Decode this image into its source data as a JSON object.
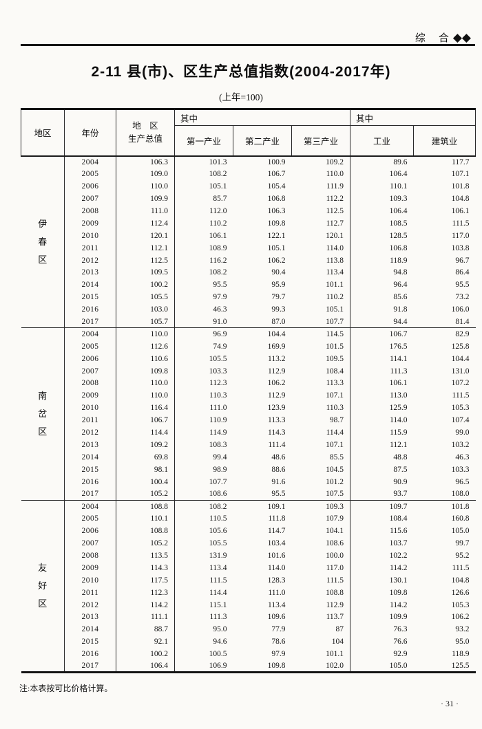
{
  "page": {
    "corner_label": "综　合",
    "corner_diamonds": "◆◆",
    "title": "2-11 县(市)、区生产总值指数(2004-2017年)",
    "subtitle": "(上年=100)",
    "footnote": "注:本表按可比价格计算。",
    "page_number": "· 31 ·"
  },
  "table": {
    "headers": {
      "region": "地区",
      "year": "年份",
      "gdp_line1": "地　区",
      "gdp_line2": "生产总值",
      "of_which_1": "其中",
      "primary": "第一产业",
      "secondary": "第二产业",
      "tertiary": "第三产业",
      "of_which_2": "其中",
      "industry": "工业",
      "construction": "建筑业"
    },
    "sections": [
      {
        "region": "伊春区",
        "region_chars": [
          "伊",
          "春",
          "区"
        ],
        "rows": [
          [
            "2004",
            "106.3",
            "101.3",
            "100.9",
            "109.2",
            "89.6",
            "117.7"
          ],
          [
            "2005",
            "109.0",
            "108.2",
            "106.7",
            "110.0",
            "106.4",
            "107.1"
          ],
          [
            "2006",
            "110.0",
            "105.1",
            "105.4",
            "111.9",
            "110.1",
            "101.8"
          ],
          [
            "2007",
            "109.9",
            "85.7",
            "106.8",
            "112.2",
            "109.3",
            "104.8"
          ],
          [
            "2008",
            "111.0",
            "112.0",
            "106.3",
            "112.5",
            "106.4",
            "106.1"
          ],
          [
            "2009",
            "112.4",
            "110.2",
            "109.8",
            "112.7",
            "108.5",
            "111.5"
          ],
          [
            "2010",
            "120.1",
            "106.1",
            "122.1",
            "120.1",
            "128.5",
            "117.0"
          ],
          [
            "2011",
            "112.1",
            "108.9",
            "105.1",
            "114.0",
            "106.8",
            "103.8"
          ],
          [
            "2012",
            "112.5",
            "116.2",
            "106.2",
            "113.8",
            "118.9",
            "96.7"
          ],
          [
            "2013",
            "109.5",
            "108.2",
            "90.4",
            "113.4",
            "94.8",
            "86.4"
          ],
          [
            "2014",
            "100.2",
            "95.5",
            "95.9",
            "101.1",
            "96.4",
            "95.5"
          ],
          [
            "2015",
            "105.5",
            "97.9",
            "79.7",
            "110.2",
            "85.6",
            "73.2"
          ],
          [
            "2016",
            "103.0",
            "46.3",
            "99.3",
            "105.1",
            "91.8",
            "106.0"
          ],
          [
            "2017",
            "105.7",
            "91.0",
            "87.0",
            "107.7",
            "94.4",
            "81.4"
          ]
        ]
      },
      {
        "region": "南岔区",
        "region_chars": [
          "南",
          "岔",
          "区"
        ],
        "rows": [
          [
            "2004",
            "110.0",
            "96.9",
            "104.4",
            "114.5",
            "106.7",
            "82.9"
          ],
          [
            "2005",
            "112.6",
            "74.9",
            "169.9",
            "101.5",
            "176.5",
            "125.8"
          ],
          [
            "2006",
            "110.6",
            "105.5",
            "113.2",
            "109.5",
            "114.1",
            "104.4"
          ],
          [
            "2007",
            "109.8",
            "103.3",
            "112.9",
            "108.4",
            "111.3",
            "131.0"
          ],
          [
            "2008",
            "110.0",
            "112.3",
            "106.2",
            "113.3",
            "106.1",
            "107.2"
          ],
          [
            "2009",
            "110.0",
            "110.3",
            "112.9",
            "107.1",
            "113.0",
            "111.5"
          ],
          [
            "2010",
            "116.4",
            "111.0",
            "123.9",
            "110.3",
            "125.9",
            "105.3"
          ],
          [
            "2011",
            "106.7",
            "110.9",
            "113.3",
            "98.7",
            "114.0",
            "107.4"
          ],
          [
            "2012",
            "114.4",
            "114.9",
            "114.3",
            "114.4",
            "115.9",
            "99.0"
          ],
          [
            "2013",
            "109.2",
            "108.3",
            "111.4",
            "107.1",
            "112.1",
            "103.2"
          ],
          [
            "2014",
            "69.8",
            "99.4",
            "48.6",
            "85.5",
            "48.8",
            "46.3"
          ],
          [
            "2015",
            "98.1",
            "98.9",
            "88.6",
            "104.5",
            "87.5",
            "103.3"
          ],
          [
            "2016",
            "100.4",
            "107.7",
            "91.6",
            "101.2",
            "90.9",
            "96.5"
          ],
          [
            "2017",
            "105.2",
            "108.6",
            "95.5",
            "107.5",
            "93.7",
            "108.0"
          ]
        ]
      },
      {
        "region": "友好区",
        "region_chars": [
          "友",
          "好",
          "区"
        ],
        "rows": [
          [
            "2004",
            "108.8",
            "108.2",
            "109.1",
            "109.3",
            "109.7",
            "101.8"
          ],
          [
            "2005",
            "110.1",
            "110.5",
            "111.8",
            "107.9",
            "108.4",
            "160.8"
          ],
          [
            "2006",
            "108.8",
            "105.6",
            "114.7",
            "104.1",
            "115.6",
            "105.0"
          ],
          [
            "2007",
            "105.2",
            "105.5",
            "103.4",
            "108.6",
            "103.7",
            "99.7"
          ],
          [
            "2008",
            "113.5",
            "131.9",
            "101.6",
            "100.0",
            "102.2",
            "95.2"
          ],
          [
            "2009",
            "114.3",
            "113.4",
            "114.0",
            "117.0",
            "114.2",
            "111.5"
          ],
          [
            "2010",
            "117.5",
            "111.5",
            "128.3",
            "111.5",
            "130.1",
            "104.8"
          ],
          [
            "2011",
            "112.3",
            "114.4",
            "111.0",
            "108.8",
            "109.8",
            "126.6"
          ],
          [
            "2012",
            "114.2",
            "115.1",
            "113.4",
            "112.9",
            "114.2",
            "105.3"
          ],
          [
            "2013",
            "111.1",
            "111.3",
            "109.6",
            "113.7",
            "109.9",
            "106.2"
          ],
          [
            "2014",
            "88.7",
            "95.0",
            "77.9",
            "87",
            "76.3",
            "93.2"
          ],
          [
            "2015",
            "92.1",
            "94.6",
            "78.6",
            "104",
            "76.6",
            "95.0"
          ],
          [
            "2016",
            "100.2",
            "100.5",
            "97.9",
            "101.1",
            "92.9",
            "118.9"
          ],
          [
            "2017",
            "106.4",
            "106.9",
            "109.8",
            "102.0",
            "105.0",
            "125.5"
          ]
        ]
      }
    ]
  }
}
